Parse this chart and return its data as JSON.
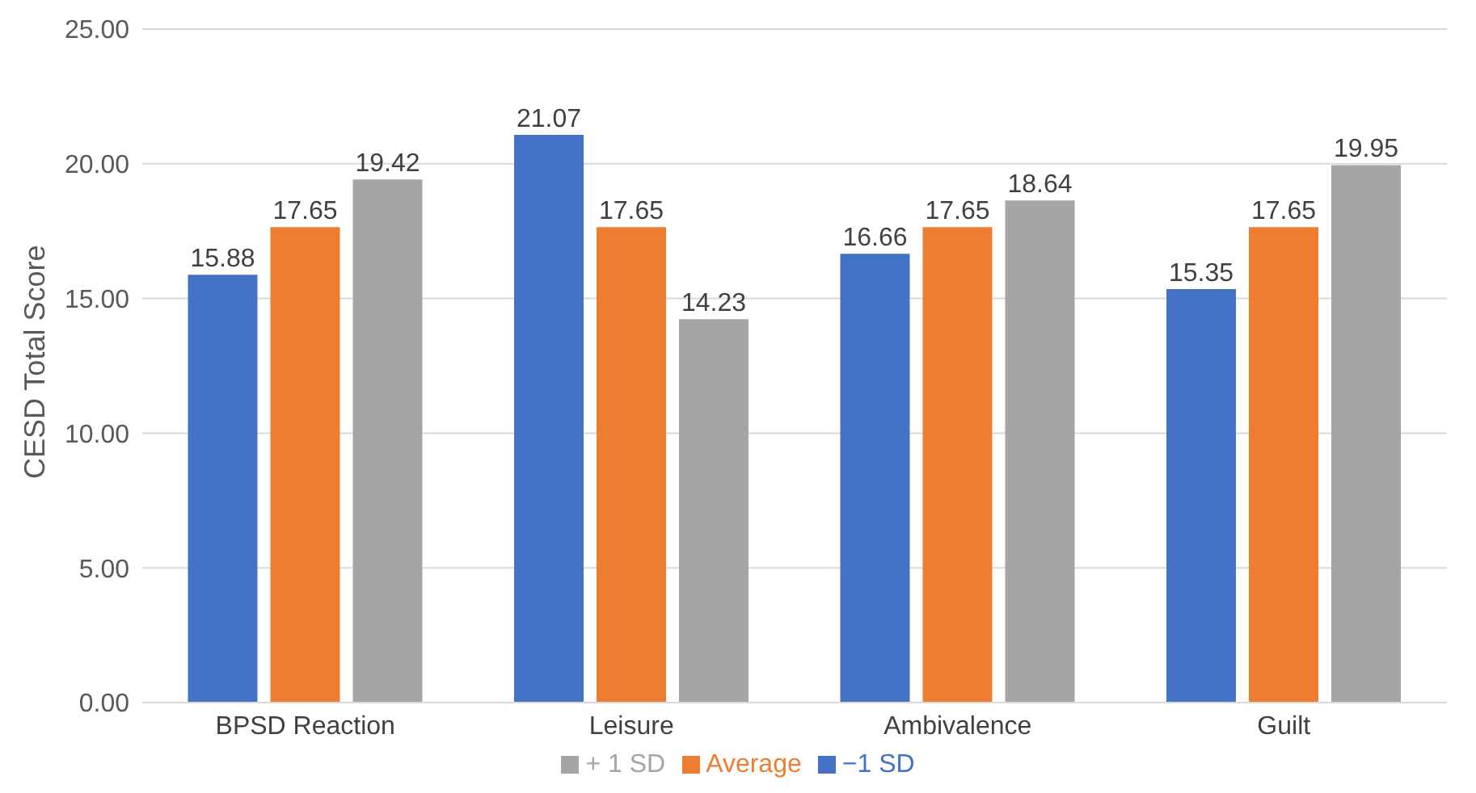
{
  "chart_data": {
    "type": "bar",
    "ylabel": "CESD Total Score",
    "categories": [
      "BPSD Reaction",
      "Leisure",
      "Ambivalence",
      "Guilt"
    ],
    "series": [
      {
        "name": "−1 SD",
        "color": "#4472c4",
        "values": [
          15.88,
          21.07,
          16.66,
          15.35
        ]
      },
      {
        "name": "Average",
        "color": "#ed7d31",
        "values": [
          17.65,
          17.65,
          17.65,
          17.65
        ]
      },
      {
        "name": "+ 1 SD",
        "color": "#a5a5a5",
        "values": [
          19.42,
          14.23,
          18.64,
          19.95
        ]
      }
    ],
    "ylim": [
      0,
      25
    ],
    "yticks": [
      {
        "value": 0,
        "label": "0.00"
      },
      {
        "value": 5,
        "label": "5.00"
      },
      {
        "value": 10,
        "label": "10.00"
      },
      {
        "value": 15,
        "label": "15.00"
      },
      {
        "value": 20,
        "label": "20.00"
      },
      {
        "value": 25,
        "label": "25.00"
      }
    ],
    "grid": "y",
    "legend": "bottom",
    "data_labels": true
  }
}
